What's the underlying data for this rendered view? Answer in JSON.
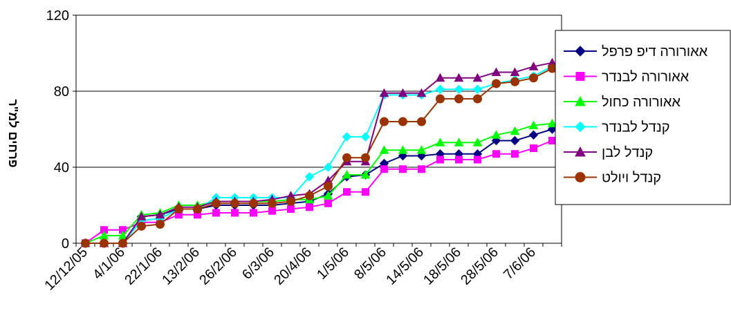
{
  "chart_data": {
    "type": "line",
    "ylabel": "פרחים למ\"ר",
    "ylim": [
      0,
      120
    ],
    "yticks": [
      "0",
      "40",
      "80",
      "120"
    ],
    "grid": "horizontal",
    "legend_position": "right",
    "x_tick_labels": [
      "12/12/05",
      "4/1/06",
      "22/1/06",
      "13/2/06",
      "26/2/06",
      "6/3/06",
      "20/4/06",
      "1/5/06",
      "8/5/06",
      "14/5/06",
      "18/5/06",
      "28/5/06",
      "7/6/06"
    ],
    "x_tick_index": [
      0,
      2,
      4,
      6,
      8,
      10,
      12,
      14,
      16,
      18,
      20,
      22,
      24
    ],
    "n_points": 26,
    "series": [
      {
        "name": "אאורורה דיפ פרפל",
        "color": "#000080",
        "marker": "diamond",
        "values": [
          0,
          0,
          0,
          14,
          15,
          18,
          18,
          20,
          20,
          20,
          20,
          21,
          22,
          26,
          35,
          36,
          42,
          46,
          46,
          47,
          47,
          47,
          54,
          54,
          57,
          60
        ]
      },
      {
        "name": "אאורורה לבנדר",
        "color": "#FF00FF",
        "marker": "square",
        "values": [
          0,
          7,
          7,
          11,
          11,
          15,
          15,
          16,
          16,
          16,
          17,
          18,
          19,
          21,
          27,
          27,
          39,
          39,
          39,
          44,
          44,
          44,
          47,
          47,
          50,
          54
        ]
      },
      {
        "name": "אאורורה כחול",
        "color": "#00FF00",
        "marker": "triangle",
        "values": [
          0,
          4,
          4,
          15,
          16,
          20,
          20,
          22,
          22,
          22,
          22,
          23,
          23,
          25,
          36,
          36,
          49,
          49,
          49,
          53,
          53,
          53,
          57,
          59,
          62,
          63
        ]
      },
      {
        "name": "קנדל לבנדר",
        "color": "#00FFFF",
        "marker": "diamond",
        "values": [
          0,
          0,
          0,
          12,
          13,
          18,
          18,
          24,
          24,
          24,
          24,
          24,
          35,
          40,
          56,
          56,
          78,
          78,
          78,
          81,
          81,
          81,
          84,
          86,
          88,
          93
        ]
      },
      {
        "name": "קנדל לבן",
        "color": "#800080",
        "marker": "triangle",
        "values": [
          0,
          0,
          0,
          14,
          15,
          19,
          19,
          22,
          22,
          22,
          23,
          25,
          26,
          33,
          43,
          43,
          79,
          79,
          79,
          87,
          87,
          87,
          90,
          90,
          93,
          95
        ]
      },
      {
        "name": "קנדל ויולט",
        "color": "#993300",
        "marker": "circle",
        "values": [
          0,
          0,
          0,
          9,
          10,
          18,
          18,
          21,
          21,
          21,
          21,
          22,
          25,
          30,
          45,
          45,
          64,
          64,
          64,
          76,
          76,
          76,
          84,
          85,
          87,
          92
        ]
      }
    ]
  }
}
